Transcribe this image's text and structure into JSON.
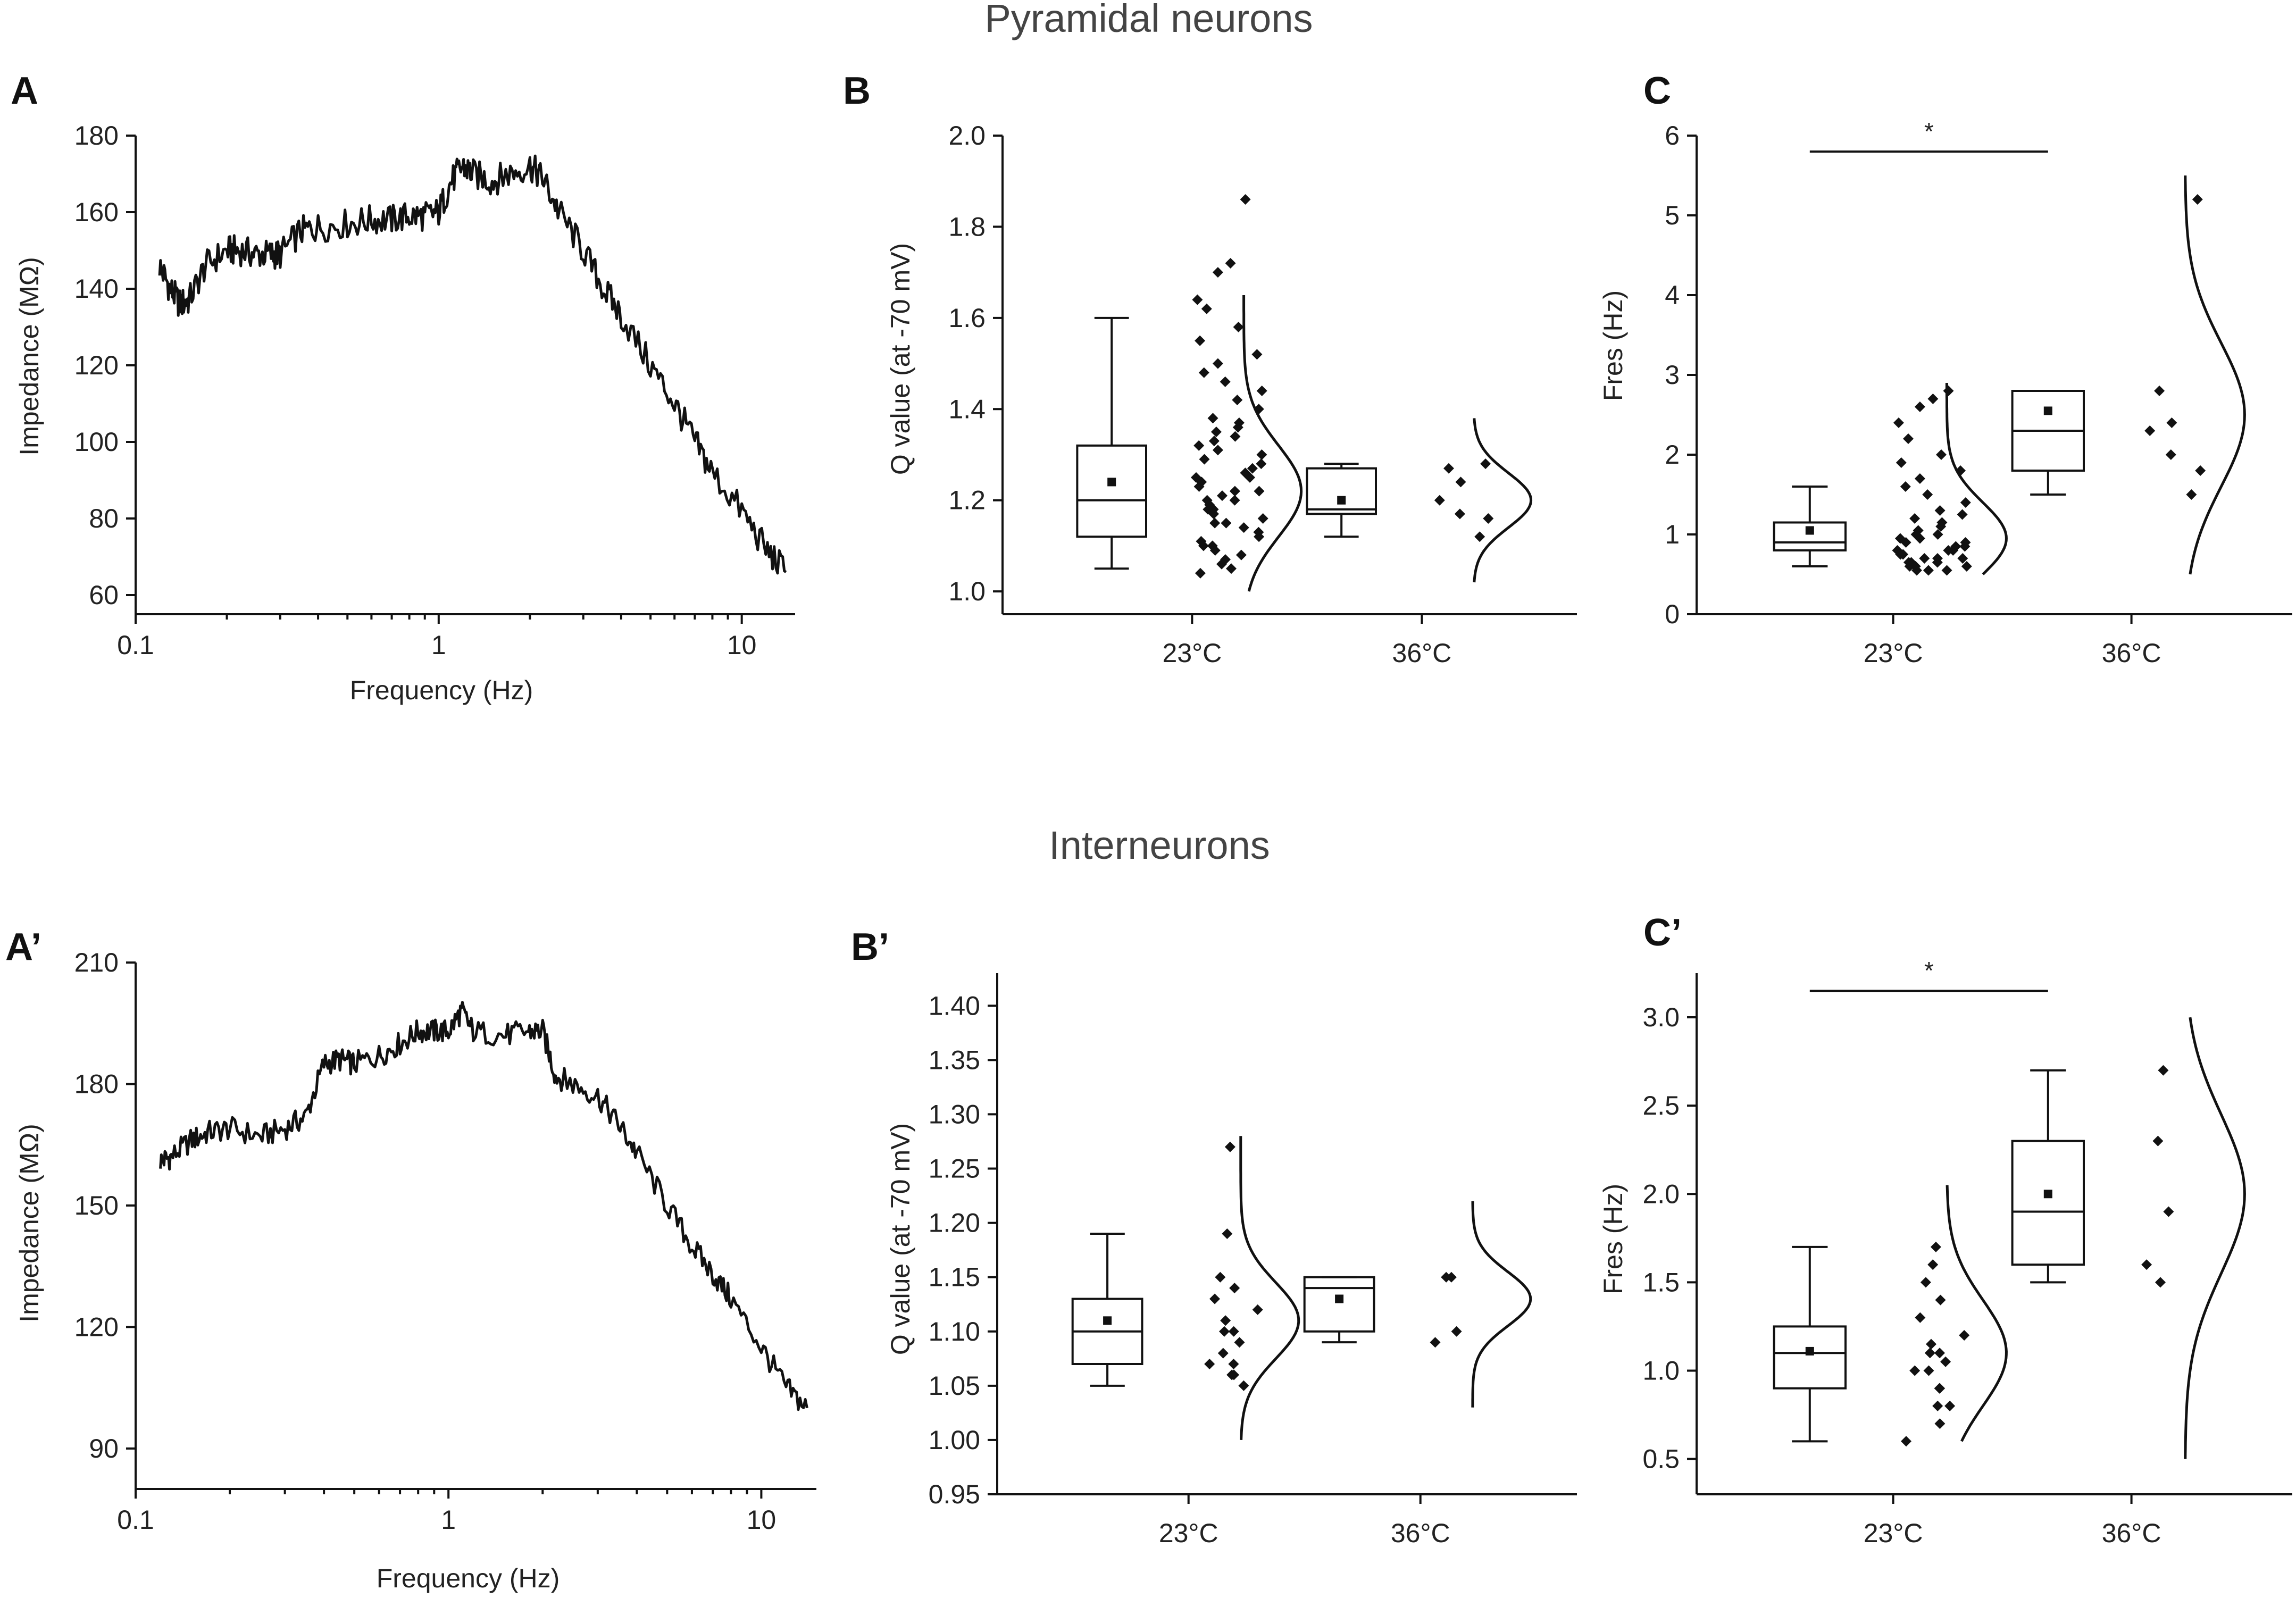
{
  "titles": {
    "top": "Pyramidal neurons",
    "bottom": "Interneurons"
  },
  "chart_data": [
    {
      "id": "A",
      "panel": "A",
      "type": "line",
      "title": "",
      "xlabel": "Frequency (Hz)",
      "ylabel": "Impedance (MΩ)",
      "xscale": "log",
      "xlim": [
        0.1,
        15
      ],
      "ylim": [
        55,
        180
      ],
      "xticks": [
        0.1,
        1,
        10
      ],
      "xtick_labels": [
        "0.1",
        "1",
        "10"
      ],
      "yticks": [
        60,
        80,
        100,
        120,
        140,
        160,
        180
      ],
      "x": [
        0.12,
        0.13,
        0.14,
        0.15,
        0.17,
        0.2,
        0.22,
        0.25,
        0.28,
        0.3,
        0.35,
        0.4,
        0.5,
        0.6,
        0.7,
        0.8,
        0.9,
        1.0,
        1.1,
        1.2,
        1.3,
        1.5,
        1.7,
        2.0,
        2.2,
        2.5,
        3.0,
        3.5,
        4.0,
        5.0,
        6.0,
        7.0,
        8.0,
        10.0,
        12.0,
        14.0
      ],
      "y": [
        146,
        140,
        136,
        137,
        146,
        150,
        150,
        149,
        149,
        149,
        155,
        156,
        157,
        158,
        158,
        159,
        159,
        160,
        168,
        172,
        170,
        168,
        170,
        172,
        169,
        160,
        150,
        140,
        133,
        120,
        110,
        100,
        92,
        82,
        72,
        66
      ],
      "noise": 4
    },
    {
      "id": "B",
      "panel": "B",
      "type": "box",
      "xlabel": "",
      "ylabel": "Q value (at -70 mV)",
      "ylim": [
        0.95,
        2.0
      ],
      "yticks": [
        1.0,
        1.2,
        1.4,
        1.6,
        1.8,
        2.0
      ],
      "ytick_decimals": 1,
      "categories": [
        "23°C",
        "36°C"
      ],
      "groups": [
        {
          "name": "23°C",
          "whisker_low": 1.05,
          "q1": 1.12,
          "median": 1.2,
          "q3": 1.32,
          "whisker_high": 1.6,
          "mean": 1.24,
          "points": [
            1.86,
            1.72,
            1.7,
            1.64,
            1.62,
            1.58,
            1.55,
            1.52,
            1.5,
            1.48,
            1.46,
            1.44,
            1.42,
            1.4,
            1.38,
            1.37,
            1.36,
            1.35,
            1.34,
            1.33,
            1.32,
            1.31,
            1.3,
            1.29,
            1.28,
            1.27,
            1.26,
            1.25,
            1.25,
            1.24,
            1.23,
            1.22,
            1.22,
            1.21,
            1.2,
            1.2,
            1.19,
            1.18,
            1.18,
            1.17,
            1.16,
            1.15,
            1.15,
            1.14,
            1.13,
            1.12,
            1.11,
            1.1,
            1.1,
            1.09,
            1.08,
            1.07,
            1.06,
            1.05,
            1.04
          ],
          "curve": {
            "mean": 1.22,
            "sd": 0.1,
            "range": [
              1.0,
              1.65
            ]
          }
        },
        {
          "name": "36°C",
          "whisker_low": 1.12,
          "q1": 1.17,
          "median": 1.18,
          "q3": 1.27,
          "whisker_high": 1.28,
          "mean": 1.2,
          "points": [
            1.28,
            1.27,
            1.24,
            1.2,
            1.17,
            1.16,
            1.12
          ],
          "curve": {
            "mean": 1.2,
            "sd": 0.06,
            "range": [
              1.02,
              1.38
            ]
          }
        }
      ]
    },
    {
      "id": "C",
      "panel": "C",
      "type": "box",
      "xlabel": "",
      "ylabel": "Fres (Hz)",
      "ylim": [
        0,
        6
      ],
      "yticks": [
        0,
        1,
        2,
        3,
        4,
        5,
        6
      ],
      "ytick_decimals": 0,
      "categories": [
        "23°C",
        "36°C"
      ],
      "significance": {
        "label": "*",
        "y": 5.8
      },
      "groups": [
        {
          "name": "23°C",
          "whisker_low": 0.6,
          "q1": 0.8,
          "median": 0.9,
          "q3": 1.15,
          "whisker_high": 1.6,
          "mean": 1.05,
          "points": [
            2.8,
            2.7,
            2.6,
            2.4,
            2.2,
            2.0,
            1.9,
            1.8,
            1.7,
            1.6,
            1.5,
            1.4,
            1.3,
            1.25,
            1.2,
            1.15,
            1.1,
            1.05,
            1.0,
            1.0,
            0.95,
            0.95,
            0.9,
            0.9,
            0.85,
            0.85,
            0.8,
            0.8,
            0.8,
            0.75,
            0.75,
            0.7,
            0.7,
            0.7,
            0.65,
            0.65,
            0.65,
            0.6,
            0.6,
            0.6,
            0.6,
            0.55,
            0.55,
            0.55
          ],
          "curve": {
            "mean": 0.95,
            "sd": 0.45,
            "range": [
              0.5,
              2.9
            ]
          }
        },
        {
          "name": "36°C",
          "whisker_low": 1.5,
          "q1": 1.8,
          "median": 2.3,
          "q3": 2.8,
          "whisker_high": 2.8,
          "mean": 2.55,
          "points": [
            5.2,
            2.8,
            2.4,
            2.3,
            2.0,
            1.8,
            1.5
          ],
          "curve": {
            "mean": 2.5,
            "sd": 0.9,
            "range": [
              0.5,
              5.5
            ]
          }
        }
      ]
    },
    {
      "id": "A2",
      "panel": "A’",
      "type": "line",
      "title": "",
      "xlabel": "Frequency (Hz)",
      "ylabel": "Impedance (MΩ)",
      "xscale": "log",
      "xlim": [
        0.1,
        15
      ],
      "ylim": [
        80,
        210
      ],
      "xticks": [
        0.1,
        1,
        10
      ],
      "xtick_labels": [
        "0.1",
        "1",
        "10"
      ],
      "yticks": [
        90,
        120,
        150,
        180,
        210
      ],
      "x": [
        0.12,
        0.13,
        0.15,
        0.17,
        0.2,
        0.25,
        0.3,
        0.35,
        0.4,
        0.45,
        0.5,
        0.6,
        0.7,
        0.8,
        0.9,
        1.0,
        1.1,
        1.2,
        1.5,
        1.8,
        2.0,
        2.2,
        2.5,
        3.0,
        3.5,
        4.0,
        5.0,
        6.0,
        7.0,
        8.0,
        10.0,
        12.0,
        14.0
      ],
      "y": [
        161,
        162,
        166,
        168,
        169,
        167,
        169,
        172,
        185,
        186,
        185,
        187,
        190,
        193,
        193,
        193,
        198,
        193,
        192,
        193,
        193,
        182,
        180,
        177,
        170,
        163,
        150,
        140,
        133,
        127,
        115,
        105,
        100
      ],
      "noise": 3
    },
    {
      "id": "B2",
      "panel": "B’",
      "type": "box",
      "xlabel": "",
      "ylabel": "Q value (at -70 mV)",
      "ylim": [
        0.95,
        1.43
      ],
      "yticks": [
        0.95,
        1.0,
        1.05,
        1.1,
        1.15,
        1.2,
        1.25,
        1.3,
        1.35,
        1.4
      ],
      "ytick_decimals": 2,
      "categories": [
        "23°C",
        "36°C"
      ],
      "groups": [
        {
          "name": "23°C",
          "whisker_low": 1.05,
          "q1": 1.07,
          "median": 1.1,
          "q3": 1.13,
          "whisker_high": 1.19,
          "mean": 1.11,
          "points": [
            1.27,
            1.19,
            1.15,
            1.14,
            1.13,
            1.12,
            1.11,
            1.1,
            1.1,
            1.09,
            1.08,
            1.07,
            1.07,
            1.06,
            1.06,
            1.05
          ],
          "curve": {
            "mean": 1.11,
            "sd": 0.035,
            "range": [
              1.0,
              1.28
            ]
          }
        },
        {
          "name": "36°C",
          "whisker_low": 1.09,
          "q1": 1.1,
          "median": 1.14,
          "q3": 1.15,
          "whisker_high": 1.15,
          "mean": 1.13,
          "points": [
            1.15,
            1.15,
            1.1,
            1.09
          ],
          "curve": {
            "mean": 1.13,
            "sd": 0.025,
            "range": [
              1.03,
              1.22
            ]
          }
        }
      ]
    },
    {
      "id": "C2",
      "panel": "C’",
      "type": "box",
      "xlabel": "",
      "ylabel": "Fres (Hz)",
      "ylim": [
        0.3,
        3.25
      ],
      "yticks": [
        0.5,
        1.0,
        1.5,
        2.0,
        2.5,
        3.0
      ],
      "ytick_decimals": 1,
      "categories": [
        "23°C",
        "36°C"
      ],
      "significance": {
        "label": "*",
        "y": 3.15
      },
      "groups": [
        {
          "name": "23°C",
          "whisker_low": 0.6,
          "q1": 0.9,
          "median": 1.1,
          "q3": 1.25,
          "whisker_high": 1.7,
          "mean": 1.11,
          "points": [
            1.7,
            1.6,
            1.5,
            1.4,
            1.3,
            1.2,
            1.15,
            1.1,
            1.1,
            1.05,
            1.0,
            1.0,
            0.9,
            0.9,
            0.8,
            0.8,
            0.7,
            0.6
          ],
          "curve": {
            "mean": 1.1,
            "sd": 0.3,
            "range": [
              0.6,
              2.05
            ]
          }
        },
        {
          "name": "36°C",
          "whisker_low": 1.5,
          "q1": 1.6,
          "median": 1.9,
          "q3": 2.3,
          "whisker_high": 2.7,
          "mean": 2.0,
          "points": [
            2.7,
            2.3,
            1.9,
            1.6,
            1.5
          ],
          "curve": {
            "mean": 2.0,
            "sd": 0.45,
            "range": [
              0.5,
              3.0
            ]
          }
        }
      ]
    }
  ]
}
